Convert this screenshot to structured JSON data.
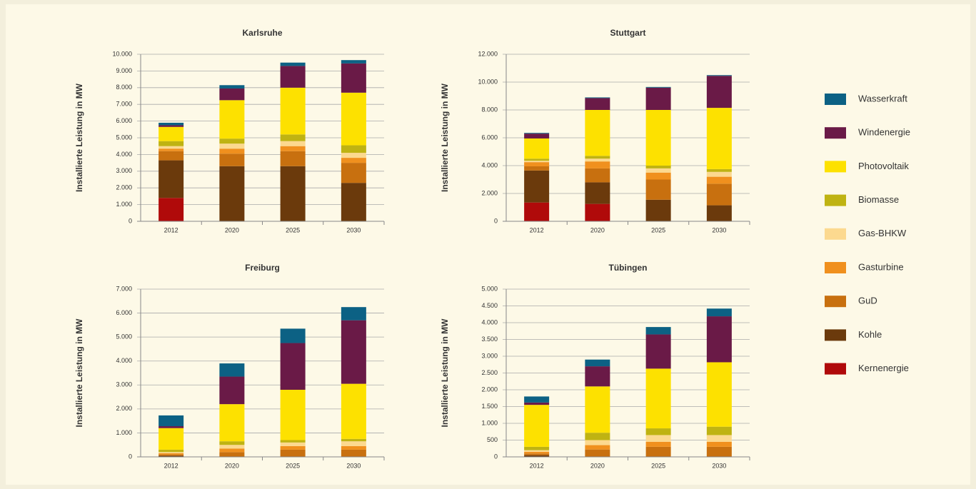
{
  "chart_data": [
    {
      "type": "bar",
      "stacked": true,
      "title": "Karlsruhe",
      "y_label": "Installierte Leistung in MW",
      "categories": [
        "2012",
        "2020",
        "2025",
        "2030"
      ],
      "ylim": [
        0,
        10000
      ],
      "yticks": [
        0,
        {
          "value": 1000,
          "label": "1.000"
        },
        {
          "value": 2000,
          "label": "2.000"
        },
        {
          "value": 3000,
          "label": "3.000"
        },
        {
          "value": 4000,
          "label": "4.000"
        },
        {
          "value": 5000,
          "label": "5.000"
        },
        {
          "value": 6000,
          "label": "6.000"
        },
        {
          "value": 7000,
          "label": "7.000"
        },
        {
          "value": 8000,
          "label": "8.000"
        },
        {
          "value": 9000,
          "label": "9.000"
        },
        {
          "value": 10000,
          "label": "10.000"
        }
      ],
      "series": [
        {
          "name": "Kernenergie",
          "color": "#b00a0a",
          "values": [
            1400,
            0,
            0,
            0
          ]
        },
        {
          "name": "Kohle",
          "color": "#6b3a0c",
          "values": [
            2250,
            3300,
            3300,
            2300
          ]
        },
        {
          "name": "GuD",
          "color": "#c8700f",
          "values": [
            550,
            750,
            900,
            1200
          ]
        },
        {
          "name": "Gasturbine",
          "color": "#f0901e",
          "values": [
            150,
            300,
            300,
            300
          ]
        },
        {
          "name": "Gas-BHKW",
          "color": "#fcd98f",
          "values": [
            150,
            300,
            300,
            300
          ]
        },
        {
          "name": "Biomasse",
          "color": "#bfb312",
          "values": [
            300,
            300,
            400,
            450
          ]
        },
        {
          "name": "Photovoltaik",
          "color": "#fde100",
          "values": [
            850,
            2300,
            2800,
            3150
          ]
        },
        {
          "name": "Windenergie",
          "color": "#6a1a47",
          "values": [
            100,
            700,
            1300,
            1750
          ]
        },
        {
          "name": "Wasserkraft",
          "color": "#0c6184",
          "values": [
            150,
            200,
            200,
            200
          ]
        }
      ]
    },
    {
      "type": "bar",
      "stacked": true,
      "title": "Stuttgart",
      "y_label": "Installierte Leistung in MW",
      "categories": [
        "2012",
        "2020",
        "2025",
        "2030"
      ],
      "ylim": [
        0,
        12000
      ],
      "yticks": [
        0,
        {
          "value": 2000,
          "label": "2.000"
        },
        {
          "value": 4000,
          "label": "4.000"
        },
        {
          "value": 6000,
          "label": "6.000"
        },
        {
          "value": 8000,
          "label": "8.000"
        },
        {
          "value": 10000,
          "label": "10.000"
        },
        {
          "value": 12000,
          "label": "12.000"
        }
      ],
      "series": [
        {
          "name": "Kernenergie",
          "color": "#b00a0a",
          "values": [
            1350,
            1250,
            0,
            0
          ]
        },
        {
          "name": "Kohle",
          "color": "#6b3a0c",
          "values": [
            2300,
            1550,
            1550,
            1150
          ]
        },
        {
          "name": "GuD",
          "color": "#c8700f",
          "values": [
            300,
            1000,
            1450,
            1550
          ]
        },
        {
          "name": "Gasturbine",
          "color": "#f0901e",
          "values": [
            300,
            500,
            500,
            500
          ]
        },
        {
          "name": "Gas-BHKW",
          "color": "#fcd98f",
          "values": [
            100,
            200,
            300,
            350
          ]
        },
        {
          "name": "Biomasse",
          "color": "#bfb312",
          "values": [
            150,
            200,
            200,
            200
          ]
        },
        {
          "name": "Photovoltaik",
          "color": "#fde100",
          "values": [
            1450,
            3300,
            4000,
            4400
          ]
        },
        {
          "name": "Windenergie",
          "color": "#6a1a47",
          "values": [
            350,
            850,
            1600,
            2300
          ]
        },
        {
          "name": "Wasserkraft",
          "color": "#0c6184",
          "values": [
            50,
            50,
            50,
            50
          ]
        }
      ]
    },
    {
      "type": "bar",
      "stacked": true,
      "title": "Freiburg",
      "y_label": "Installierte Leistung in MW",
      "categories": [
        "2012",
        "2020",
        "2025",
        "2030"
      ],
      "ylim": [
        0,
        7000
      ],
      "yticks": [
        0,
        {
          "value": 1000,
          "label": "1.000"
        },
        {
          "value": 2000,
          "label": "2.000"
        },
        {
          "value": 3000,
          "label": "3.000"
        },
        {
          "value": 4000,
          "label": "4.000"
        },
        {
          "value": 5000,
          "label": "5.000"
        },
        {
          "value": 6000,
          "label": "6.000"
        },
        {
          "value": 7000,
          "label": "7.000"
        }
      ],
      "series": [
        {
          "name": "Kernenergie",
          "color": "#b00a0a",
          "values": [
            0,
            0,
            0,
            0
          ]
        },
        {
          "name": "Kohle",
          "color": "#6b3a0c",
          "values": [
            50,
            0,
            0,
            0
          ]
        },
        {
          "name": "GuD",
          "color": "#c8700f",
          "values": [
            50,
            200,
            300,
            300
          ]
        },
        {
          "name": "Gasturbine",
          "color": "#f0901e",
          "values": [
            50,
            150,
            150,
            150
          ]
        },
        {
          "name": "Gas-BHKW",
          "color": "#fcd98f",
          "values": [
            50,
            150,
            150,
            200
          ]
        },
        {
          "name": "Biomasse",
          "color": "#bfb312",
          "values": [
            100,
            150,
            100,
            100
          ]
        },
        {
          "name": "Photovoltaik",
          "color": "#fde100",
          "values": [
            900,
            1550,
            2100,
            2300
          ]
        },
        {
          "name": "Windenergie",
          "color": "#6a1a47",
          "values": [
            80,
            1150,
            1950,
            2650
          ]
        },
        {
          "name": "Wasserkraft",
          "color": "#0c6184",
          "values": [
            450,
            550,
            600,
            550
          ]
        }
      ]
    },
    {
      "type": "bar",
      "stacked": true,
      "title": "Tübingen",
      "y_label": "Installierte Leistung in MW",
      "categories": [
        "2012",
        "2020",
        "2025",
        "2030"
      ],
      "ylim": [
        0,
        5000
      ],
      "yticks": [
        0,
        500,
        {
          "value": 1000,
          "label": "1.000"
        },
        {
          "value": 1500,
          "label": "1.500"
        },
        {
          "value": 2000,
          "label": "2.000"
        },
        {
          "value": 2500,
          "label": "2.500"
        },
        {
          "value": 3000,
          "label": "3.000"
        },
        {
          "value": 3500,
          "label": "3.500"
        },
        {
          "value": 4000,
          "label": "4.000"
        },
        {
          "value": 4500,
          "label": "4.500"
        },
        {
          "value": 5000,
          "label": "5.000"
        }
      ],
      "series": [
        {
          "name": "Kernenergie",
          "color": "#b00a0a",
          "values": [
            0,
            0,
            0,
            0
          ]
        },
        {
          "name": "Kohle",
          "color": "#6b3a0c",
          "values": [
            50,
            0,
            0,
            0
          ]
        },
        {
          "name": "GuD",
          "color": "#c8700f",
          "values": [
            50,
            220,
            300,
            300
          ]
        },
        {
          "name": "Gasturbine",
          "color": "#f0901e",
          "values": [
            50,
            130,
            150,
            150
          ]
        },
        {
          "name": "Gas-BHKW",
          "color": "#fcd98f",
          "values": [
            50,
            150,
            200,
            200
          ]
        },
        {
          "name": "Biomasse",
          "color": "#bfb312",
          "values": [
            100,
            220,
            200,
            250
          ]
        },
        {
          "name": "Photovoltaik",
          "color": "#fde100",
          "values": [
            1250,
            1380,
            1780,
            1920
          ]
        },
        {
          "name": "Windenergie",
          "color": "#6a1a47",
          "values": [
            70,
            600,
            1020,
            1370
          ]
        },
        {
          "name": "Wasserkraft",
          "color": "#0c6184",
          "values": [
            180,
            200,
            220,
            230
          ]
        }
      ]
    }
  ]
}
